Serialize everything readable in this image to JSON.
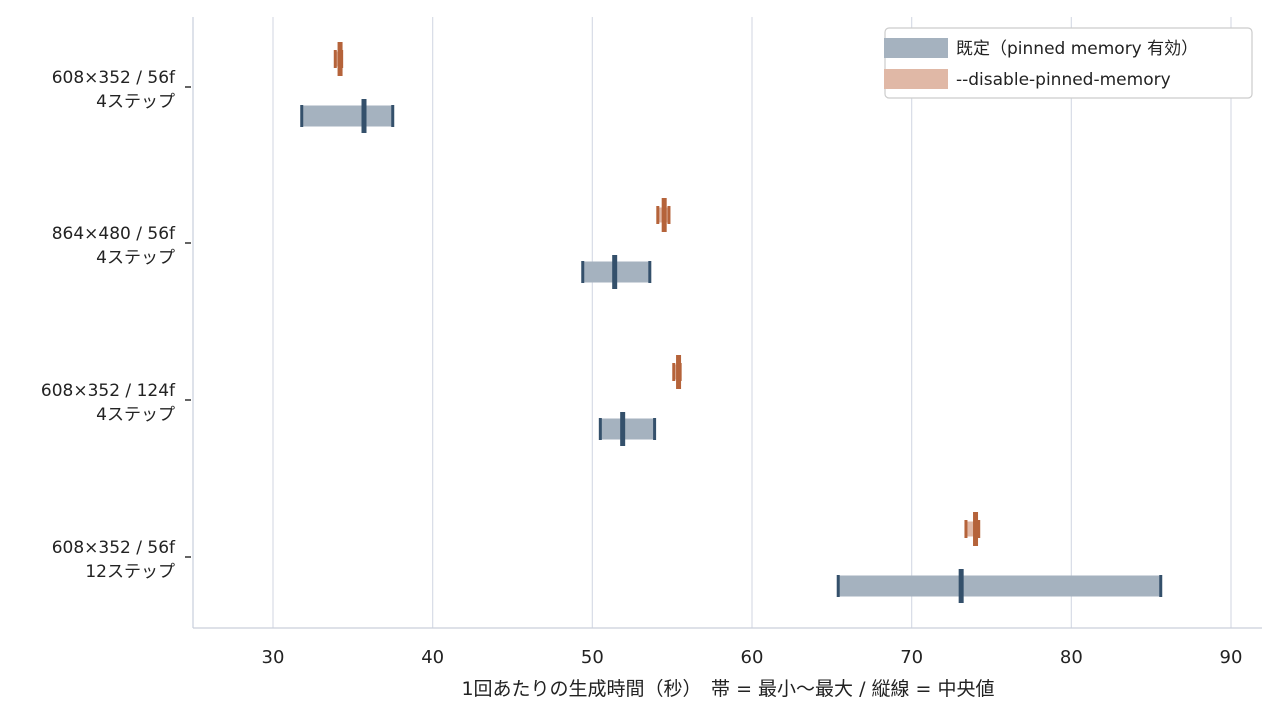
{
  "chart_data": {
    "type": "range",
    "xlabel": "1回あたりの生成時間（秒）　帯 = 最小〜最大 / 縦線 = 中央値",
    "xlim": [
      25,
      92
    ],
    "xticks": [
      30,
      40,
      50,
      60,
      70,
      80,
      90
    ],
    "grid": "vertical",
    "legend_position": "top-right",
    "categories": [
      [
        "608×352 / 56f",
        "4ステップ"
      ],
      [
        "864×480 / 56f",
        "4ステップ"
      ],
      [
        "608×352 / 124f",
        "4ステップ"
      ],
      [
        "608×352 / 56f",
        "12ステップ"
      ]
    ],
    "series": [
      {
        "name": "既定（pinned memory 有効）",
        "color": "#34506b",
        "band_color": "#a5b2bf",
        "min": [
          31.8,
          49.4,
          50.5,
          65.4
        ],
        "median": [
          35.7,
          51.4,
          51.9,
          73.1
        ],
        "max": [
          37.5,
          53.6,
          53.9,
          85.6
        ]
      },
      {
        "name": "--disable-pinned-memory",
        "color": "#b5633a",
        "band_color": "#e0b8a6",
        "min": [
          33.9,
          54.1,
          55.1,
          73.4
        ],
        "median": [
          34.2,
          54.5,
          55.4,
          74.0
        ],
        "max": [
          34.3,
          54.8,
          55.5,
          74.2
        ]
      }
    ]
  }
}
